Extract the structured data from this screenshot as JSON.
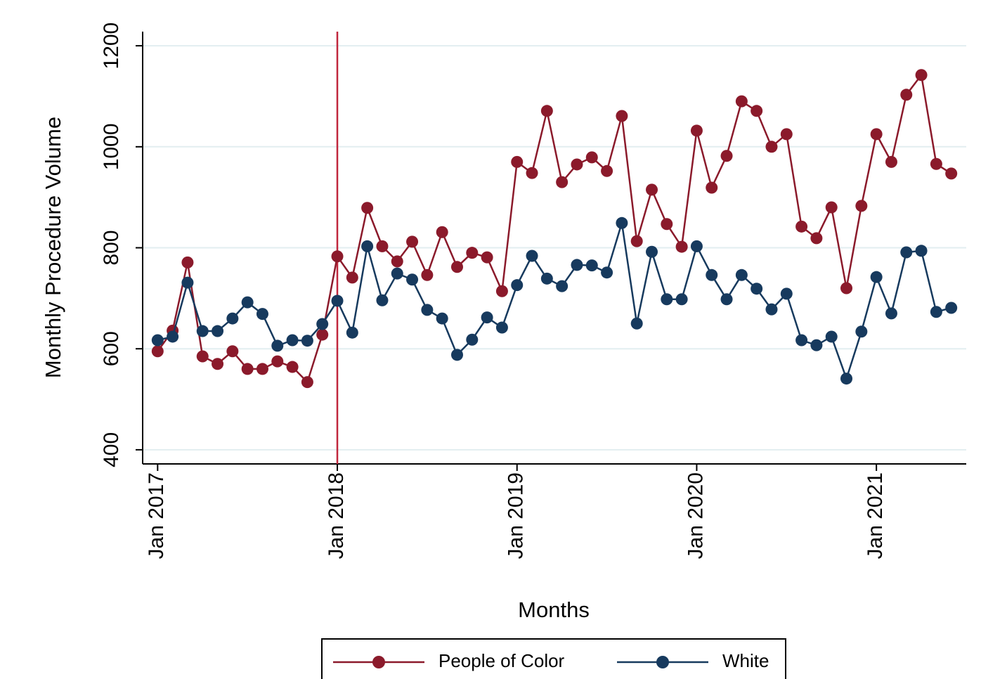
{
  "chart_data": {
    "type": "line",
    "y_label": "Monthly Procedure Volume",
    "x_label": "Months",
    "x": [
      "2017-01",
      "2017-02",
      "2017-03",
      "2017-04",
      "2017-05",
      "2017-06",
      "2017-07",
      "2017-08",
      "2017-09",
      "2017-10",
      "2017-11",
      "2017-12",
      "2018-01",
      "2018-02",
      "2018-03",
      "2018-04",
      "2018-05",
      "2018-06",
      "2018-07",
      "2018-08",
      "2018-09",
      "2018-10",
      "2018-11",
      "2018-12",
      "2019-01",
      "2019-02",
      "2019-03",
      "2019-04",
      "2019-05",
      "2019-06",
      "2019-07",
      "2019-08",
      "2019-09",
      "2019-10",
      "2019-11",
      "2019-12",
      "2020-01",
      "2020-02",
      "2020-03",
      "2020-04",
      "2020-05",
      "2020-06",
      "2020-07",
      "2020-08",
      "2020-09",
      "2020-10",
      "2020-11",
      "2020-12",
      "2021-01",
      "2021-02",
      "2021-03",
      "2021-04",
      "2021-05",
      "2021-06"
    ],
    "series": [
      {
        "name": "People of Color",
        "color": "#8b1a2b",
        "values": [
          595,
          636,
          771,
          585,
          570,
          595,
          560,
          560,
          575,
          564,
          534,
          628,
          783,
          741,
          879,
          803,
          773,
          812,
          746,
          831,
          762,
          790,
          781,
          714,
          970,
          948,
          1071,
          930,
          965,
          979,
          952,
          1061,
          813,
          915,
          847,
          802,
          1032,
          919,
          982,
          1090,
          1071,
          1000,
          1025,
          842,
          819,
          880,
          720,
          883,
          1025,
          970,
          1103,
          1142,
          966,
          947
        ]
      },
      {
        "name": "White",
        "color": "#173a5e",
        "values": [
          617,
          624,
          731,
          635,
          635,
          660,
          692,
          669,
          606,
          617,
          616,
          649,
          695,
          632,
          803,
          696,
          749,
          737,
          677,
          660,
          588,
          618,
          662,
          642,
          726,
          784,
          739,
          724,
          766,
          765,
          751,
          849,
          650,
          792,
          698,
          698,
          803,
          746,
          698,
          746,
          719,
          678,
          709,
          617,
          607,
          624,
          541,
          634,
          742,
          670,
          791,
          794,
          673,
          681
        ]
      }
    ],
    "xlim": [
      "2016-12",
      "2021-07"
    ],
    "xticks": [
      {
        "value": "2017-01",
        "label": "Jan 2017"
      },
      {
        "value": "2018-01",
        "label": "Jan 2018"
      },
      {
        "value": "2019-01",
        "label": "Jan 2019"
      },
      {
        "value": "2020-01",
        "label": "Jan 2020"
      },
      {
        "value": "2021-01",
        "label": "Jan 2021"
      }
    ],
    "ylim": [
      372,
      1228
    ],
    "yticks": [
      400,
      600,
      800,
      1000,
      1200
    ],
    "grid": true,
    "vline": {
      "x": "2018-01",
      "color": "#c0263c"
    },
    "legend": "bottom"
  }
}
